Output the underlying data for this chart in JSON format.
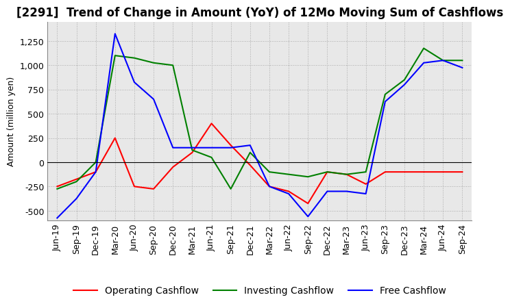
{
  "title": "[2291]  Trend of Change in Amount (YoY) of 12Mo Moving Sum of Cashflows",
  "ylabel": "Amount (million yen)",
  "background_color": "#ffffff",
  "plot_bg_color": "#e8e8e8",
  "grid_color": "#aaaaaa",
  "x_labels": [
    "Jun-19",
    "Sep-19",
    "Dec-19",
    "Mar-20",
    "Jun-20",
    "Sep-20",
    "Dec-20",
    "Mar-21",
    "Jun-21",
    "Sep-21",
    "Dec-21",
    "Mar-22",
    "Jun-22",
    "Sep-22",
    "Dec-22",
    "Mar-23",
    "Jun-23",
    "Sep-23",
    "Dec-23",
    "Mar-24",
    "Jun-24",
    "Sep-24"
  ],
  "operating": [
    -250,
    -175,
    -100,
    250,
    -250,
    -275,
    -50,
    100,
    400,
    175,
    -30,
    -250,
    -300,
    -425,
    -100,
    -125,
    -225,
    -100,
    -100,
    -100,
    -100,
    -100
  ],
  "investing": [
    -275,
    -200,
    0,
    1100,
    1075,
    1025,
    1000,
    125,
    50,
    -275,
    100,
    -100,
    -125,
    -150,
    -100,
    -125,
    -100,
    700,
    850,
    1175,
    1050,
    1050
  ],
  "free": [
    -575,
    -375,
    -100,
    1325,
    825,
    650,
    150,
    150,
    150,
    150,
    175,
    -250,
    -325,
    -560,
    -300,
    -300,
    -325,
    625,
    800,
    1025,
    1050,
    975
  ],
  "ylim": [
    -600,
    1450
  ],
  "yticks": [
    -500,
    -250,
    0,
    250,
    500,
    750,
    1000,
    1250
  ],
  "operating_color": "#ff0000",
  "investing_color": "#008000",
  "free_color": "#0000ff",
  "title_fontsize": 12,
  "axis_fontsize": 9,
  "legend_fontsize": 10
}
